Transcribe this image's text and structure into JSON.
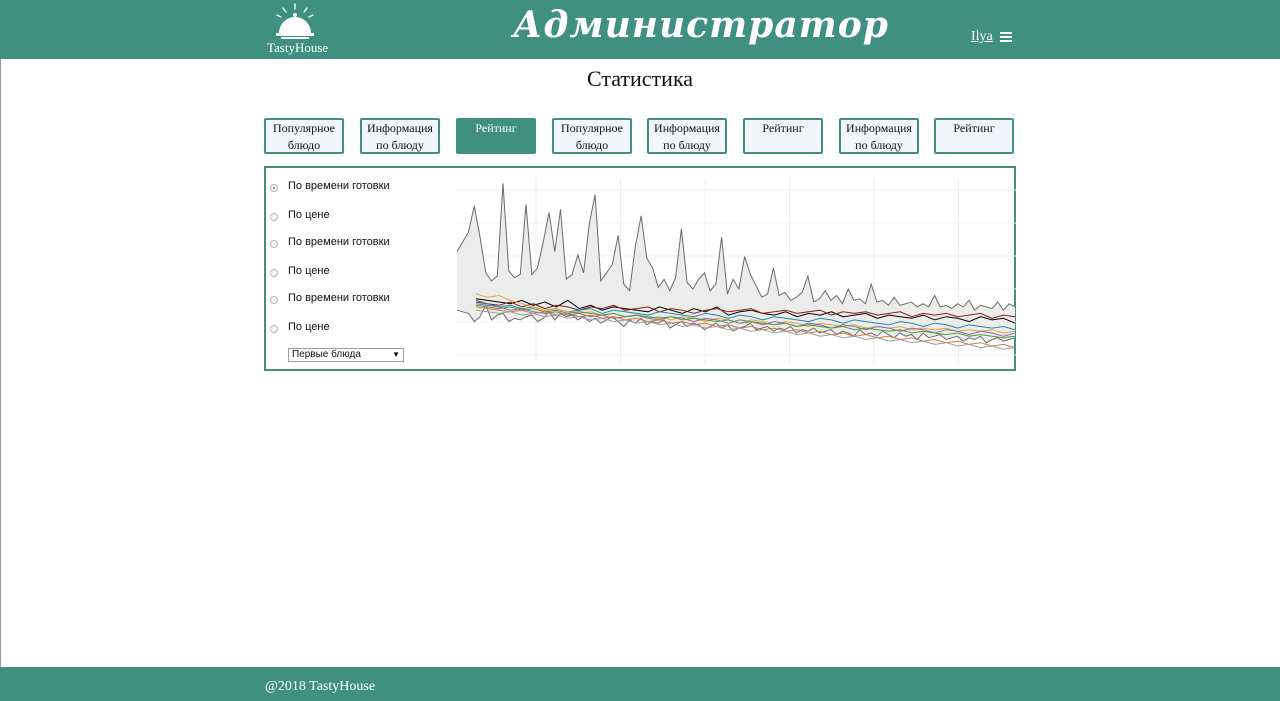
{
  "header": {
    "logo_text": "TastyHouse",
    "title": "Администратор",
    "user_name": "Ilya",
    "menu_icon": "hamburger-icon",
    "logo_icon": "service-bell-icon",
    "brand_color": "#3f9080"
  },
  "page_title": "Статистика",
  "tabs": [
    {
      "label": "Популярное блюдо",
      "active": false
    },
    {
      "label": "Информация по блюду",
      "active": false
    },
    {
      "label": "Рейтинг",
      "active": true
    },
    {
      "label": "Популярное блюдо",
      "active": false
    },
    {
      "label": "Информация по блюду",
      "active": false
    },
    {
      "label": "Рейтинг",
      "active": false
    },
    {
      "label": "Информация по блюду",
      "active": false
    },
    {
      "label": "Рейтинг",
      "active": false
    }
  ],
  "filters": {
    "options": [
      {
        "label": "По времени готовки",
        "checked": true
      },
      {
        "label": "По цене",
        "checked": false
      },
      {
        "label": "По времени готовки",
        "checked": false
      },
      {
        "label": "По цене",
        "checked": false
      },
      {
        "label": "По времени готовки",
        "checked": false
      },
      {
        "label": "По цене",
        "checked": false
      }
    ],
    "category_select": "Первые блюда"
  },
  "chart_data": {
    "type": "line",
    "title": "",
    "xlabel": "",
    "ylabel": "",
    "grid": true,
    "band": {
      "name": "",
      "upper": [
        8.6,
        9.2,
        9.8,
        11.4,
        9.5,
        7.3,
        6.8,
        7.1,
        12.8,
        7.4,
        7.0,
        7.2,
        11.5,
        7.2,
        7.6,
        9.2,
        11.0,
        8.6,
        11.2,
        6.9,
        7.2,
        8.4,
        7.3,
        10.3,
        12.1,
        6.8,
        7.3,
        7.8,
        9.6,
        6.6,
        6.2,
        8.9,
        10.8,
        8.2,
        7.6,
        6.4,
        6.9,
        6.2,
        7.0,
        10.0,
        6.7,
        6.3,
        6.9,
        7.3,
        6.2,
        6.6,
        9.5,
        6.0,
        6.9,
        6.3,
        8.3,
        7.2,
        6.5,
        5.8,
        6.0,
        7.6,
        5.9,
        6.1,
        5.6,
        5.8,
        6.1,
        7.1,
        5.5,
        5.7,
        6.2,
        5.6,
        5.9,
        5.4,
        6.3,
        5.6,
        5.7,
        5.4,
        6.6,
        5.5,
        5.6,
        5.3,
        5.8,
        5.3,
        5.4,
        5.5,
        5.2,
        5.4,
        5.2,
        5.9,
        5.2,
        5.3,
        5.1,
        5.4,
        5.2,
        5.6,
        5.0,
        5.3,
        5.2,
        5.1,
        5.5,
        5.0,
        5.4,
        5.2
      ],
      "lower": [
        5.0,
        4.9,
        4.8,
        4.3,
        4.6,
        5.3,
        4.4,
        4.7,
        4.8,
        4.3,
        4.5,
        4.4,
        4.6,
        4.7,
        4.3,
        4.5,
        4.9,
        4.4,
        4.8,
        4.6,
        4.7,
        4.4,
        4.6,
        4.3,
        4.5,
        4.2,
        4.4,
        4.6,
        4.3,
        4.0,
        4.4,
        4.2,
        4.5,
        4.1,
        4.3,
        4.2,
        4.4,
        3.9,
        4.1,
        4.3,
        4.0,
        4.2,
        4.1,
        3.8,
        4.0,
        4.2,
        3.9,
        4.1,
        3.7,
        3.9,
        4.0,
        4.2,
        3.8,
        3.9,
        4.0,
        3.7,
        3.9,
        3.8,
        4.0,
        3.6,
        3.8,
        3.7,
        3.9,
        3.6,
        3.7,
        3.8,
        3.5,
        3.7,
        3.6,
        3.4,
        3.8,
        3.5,
        3.6,
        3.4,
        3.7,
        3.5,
        3.3,
        3.6,
        3.4,
        3.5,
        3.2,
        3.6,
        3.3,
        3.4,
        3.5,
        3.2,
        3.3,
        3.4,
        3.1,
        3.3,
        3.2,
        3.4,
        3.0,
        3.2,
        3.3,
        3.1,
        3.2,
        3.3
      ]
    },
    "series": [
      {
        "color": "#000000",
        "values": [
          5.7,
          5.6,
          5.5,
          5.4,
          5.6,
          5.3,
          5.5,
          5.2,
          5.6,
          5.1,
          5.3,
          5.0,
          5.2,
          5.1,
          5.0,
          4.9,
          5.2,
          5.0,
          4.8,
          5.1,
          4.9,
          5.2,
          4.7,
          4.9,
          5.0,
          4.8,
          4.7,
          4.9,
          4.6,
          4.8,
          4.7,
          4.9,
          4.6,
          4.7,
          4.8,
          4.5,
          4.7,
          4.6,
          4.5,
          4.7,
          4.4,
          4.6,
          4.5,
          4.3,
          4.6,
          4.4,
          4.5,
          4.2
        ]
      },
      {
        "color": "#8b1a1a",
        "values": [
          5.5,
          5.4,
          5.3,
          5.5,
          5.2,
          5.4,
          5.1,
          5.3,
          5.2,
          5.0,
          5.2,
          5.1,
          5.3,
          5.0,
          5.1,
          5.2,
          4.9,
          5.1,
          5.0,
          4.8,
          5.0,
          5.1,
          4.9,
          5.0,
          5.1,
          4.8,
          4.9,
          5.0,
          4.8,
          4.9,
          5.0,
          4.7,
          4.9,
          4.8,
          4.9,
          4.7,
          4.8,
          4.9,
          4.6,
          4.8,
          4.7,
          4.8,
          4.6,
          4.7,
          4.8,
          4.5,
          4.7,
          4.6
        ]
      },
      {
        "color": "#1f8aa8",
        "values": [
          5.6,
          5.4,
          5.2,
          5.3,
          5.1,
          5.2,
          5.0,
          5.1,
          4.9,
          5.0,
          5.1,
          4.8,
          5.0,
          4.9,
          4.8,
          4.7,
          4.9,
          4.8,
          4.7,
          4.6,
          4.8,
          4.7,
          4.5,
          4.7,
          4.6,
          4.4,
          4.6,
          4.5,
          4.4,
          4.3,
          4.5,
          4.4,
          4.2,
          4.4,
          4.3,
          4.2,
          4.1,
          4.3,
          4.2,
          4.0,
          4.2,
          4.1,
          3.9,
          4.1,
          4.0,
          3.9,
          4.0,
          3.8
        ]
      },
      {
        "color": "#e7a634",
        "values": [
          6.0,
          5.8,
          5.9,
          5.6,
          5.4,
          5.2,
          5.0,
          5.1,
          4.9,
          4.8,
          4.9,
          4.7,
          4.8,
          4.6,
          4.7,
          4.5,
          4.6,
          4.4,
          4.6,
          4.5,
          4.3,
          4.5,
          4.4,
          4.2,
          4.4,
          4.3,
          4.1,
          4.3,
          4.2,
          4.0,
          4.2,
          4.1,
          4.0,
          4.1,
          3.9,
          4.0,
          3.9,
          4.0,
          3.8,
          3.9,
          3.8,
          3.9,
          3.7,
          3.8,
          3.7,
          3.8,
          3.6,
          3.7
        ]
      },
      {
        "color": "#8c6bb1",
        "values": [
          5.4,
          5.3,
          5.2,
          5.0,
          5.1,
          4.9,
          4.8,
          4.9,
          4.7,
          4.8,
          4.6,
          4.7,
          4.5,
          4.6,
          4.7,
          4.5,
          4.4,
          4.6,
          4.5,
          4.3,
          4.5,
          4.4,
          4.2,
          4.4,
          4.3,
          4.1,
          4.3,
          4.2,
          4.0,
          4.2,
          4.1,
          3.9,
          4.1,
          4.0,
          3.8,
          4.0,
          3.9,
          3.7,
          3.9,
          3.8,
          3.6,
          3.8,
          3.7,
          3.5,
          3.7,
          3.6,
          3.4,
          3.6
        ]
      },
      {
        "color": "#4f9a3a",
        "values": [
          5.3,
          5.2,
          5.1,
          5.2,
          5.0,
          5.1,
          4.9,
          5.0,
          4.8,
          4.9,
          4.8,
          4.7,
          4.8,
          4.6,
          4.7,
          4.6,
          4.5,
          4.6,
          4.4,
          4.5,
          4.4,
          4.3,
          4.4,
          4.2,
          4.3,
          4.2,
          4.1,
          4.2,
          4.0,
          4.1,
          4.0,
          3.9,
          4.0,
          3.8,
          3.9,
          3.8,
          3.7,
          3.8,
          3.6,
          3.7,
          3.6,
          3.5,
          3.6,
          3.4,
          3.5,
          3.4,
          3.3,
          3.4
        ]
      },
      {
        "color": "#d4763a",
        "values": [
          5.2,
          5.1,
          5.0,
          4.9,
          5.0,
          4.8,
          4.9,
          4.7,
          4.8,
          4.6,
          4.7,
          4.5,
          4.6,
          4.4,
          4.5,
          4.3,
          4.4,
          4.2,
          4.3,
          4.1,
          4.2,
          4.0,
          4.1,
          3.9,
          4.0,
          3.8,
          3.9,
          3.7,
          3.8,
          3.6,
          3.7,
          3.5,
          3.6,
          3.4,
          3.5,
          3.3,
          3.4,
          3.2,
          3.3,
          3.1,
          3.2,
          3.0,
          3.1,
          2.9,
          3.0,
          2.8,
          2.9,
          2.7
        ]
      },
      {
        "color": "#9aa0a6",
        "values": [
          5.0,
          4.9,
          4.8,
          4.9,
          4.7,
          4.8,
          4.6,
          4.7,
          4.5,
          4.6,
          4.4,
          4.5,
          4.3,
          4.4,
          4.2,
          4.3,
          4.1,
          4.2,
          4.0,
          4.1,
          3.9,
          4.0,
          3.8,
          3.9,
          3.7,
          3.8,
          3.6,
          3.7,
          3.5,
          3.6,
          3.4,
          3.5,
          3.3,
          3.4,
          3.2,
          3.3,
          3.1,
          3.2,
          3.0,
          3.1,
          2.9,
          3.0,
          2.8,
          2.9,
          2.7,
          2.8,
          2.6,
          2.7
        ]
      }
    ],
    "ylim": [
      2,
      13
    ],
    "gridlines_x": 7
  },
  "footer": {
    "text": "@2018 TastyHouse"
  }
}
